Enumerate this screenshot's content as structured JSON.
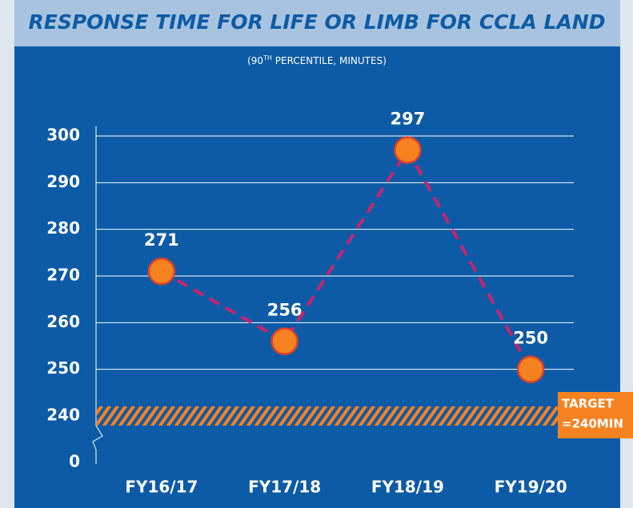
{
  "chart_data": {
    "type": "line",
    "title": "RESPONSE TIME FOR LIFE OR LIMB FOR CCLA LAND",
    "subtitle": [
      "(90",
      "TH",
      " PERCENTILE, MINUTES)"
    ],
    "categories": [
      "FY16/17",
      "FY17/18",
      "FY18/19",
      "FY19/20"
    ],
    "values": [
      271,
      256,
      297,
      250
    ],
    "line_color": "#c8246e",
    "marker_color": "#f58220",
    "marker_edge": "#e0402a",
    "ylim": [
      240,
      300
    ],
    "yticks": [
      0,
      240,
      250,
      260,
      270,
      280,
      290,
      300
    ],
    "axis_break": true,
    "grid": true,
    "target": {
      "value": 240,
      "label": [
        "TARGET",
        "=240MIN"
      ],
      "color": "#f58220"
    }
  }
}
